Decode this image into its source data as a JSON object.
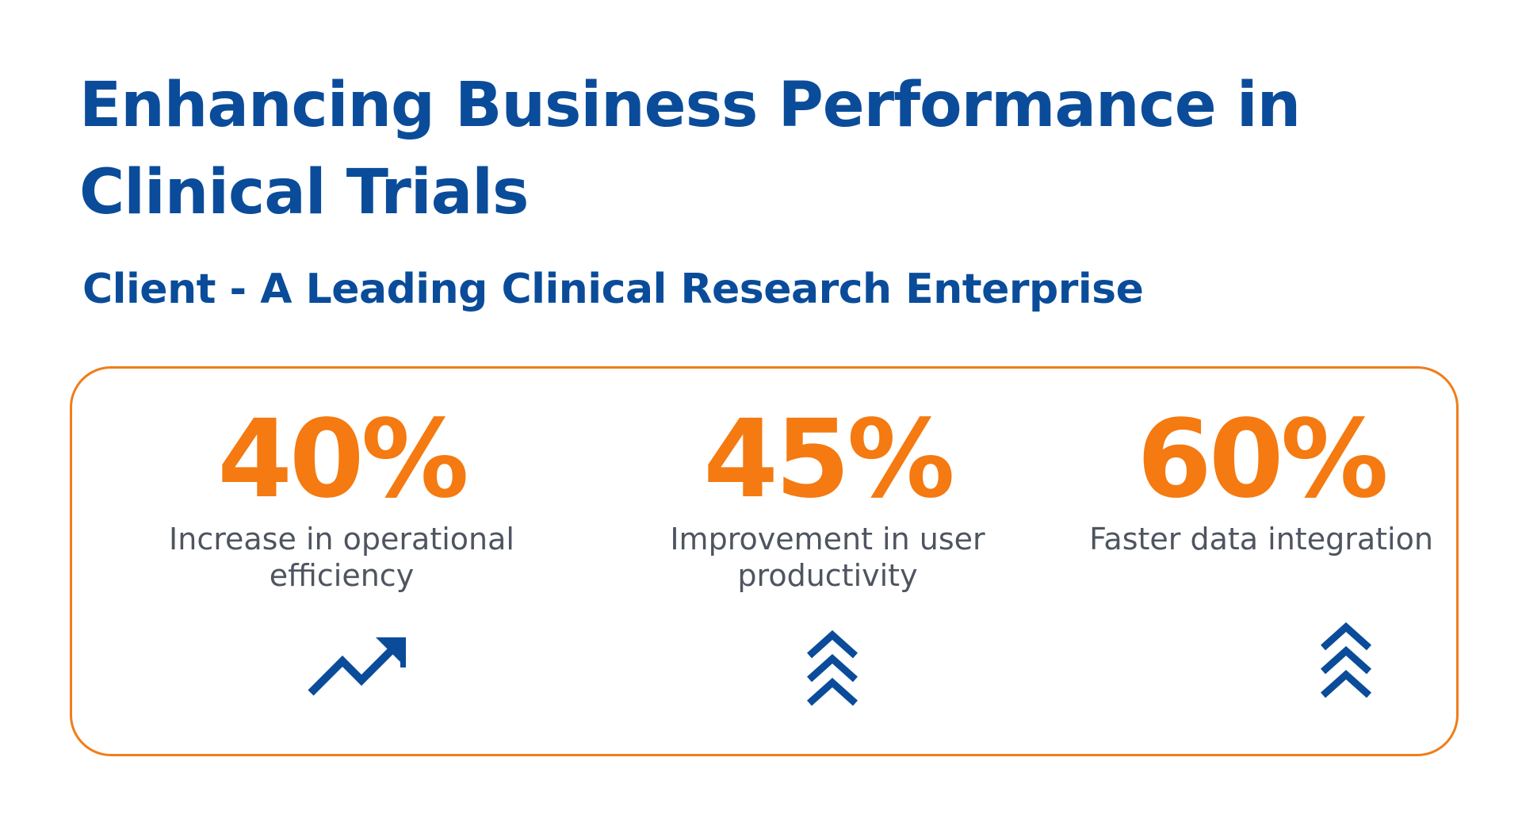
{
  "header": {
    "title": "Enhancing Business Performance in Clinical Trials",
    "subtitle": "Client - A Leading Clinical Research Enterprise"
  },
  "stats": [
    {
      "value": "40%",
      "label": "Increase in operational efficiency",
      "icon": "trending-up-arrow-icon"
    },
    {
      "value": "45%",
      "label": "Improvement in user productivity",
      "icon": "triple-chevron-up-icon"
    },
    {
      "value": "60%",
      "label": "Faster data integration",
      "icon": "triple-chevron-up-icon"
    }
  ],
  "colors": {
    "primary_blue": "#0a4c9a",
    "accent_orange": "#f47a11",
    "border_orange": "#f07d1a",
    "label_gray": "#4e5560"
  }
}
